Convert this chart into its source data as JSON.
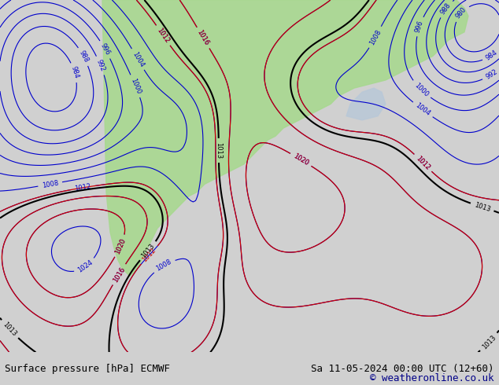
{
  "title_left": "Surface pressure [hPa] ECMWF",
  "title_right": "Sa 11-05-2024 00:00 UTC (12+60)",
  "copyright": "© weatheronline.co.uk",
  "bg_color": "#c8d8f0",
  "land_color": "#a8d890",
  "map_color_dark": "#606060",
  "contour_blue": "#0000cc",
  "contour_red": "#cc0000",
  "contour_black": "#000000",
  "font_size_label": 9,
  "font_size_title": 9,
  "bottom_bar_color": "#d0d0d0"
}
